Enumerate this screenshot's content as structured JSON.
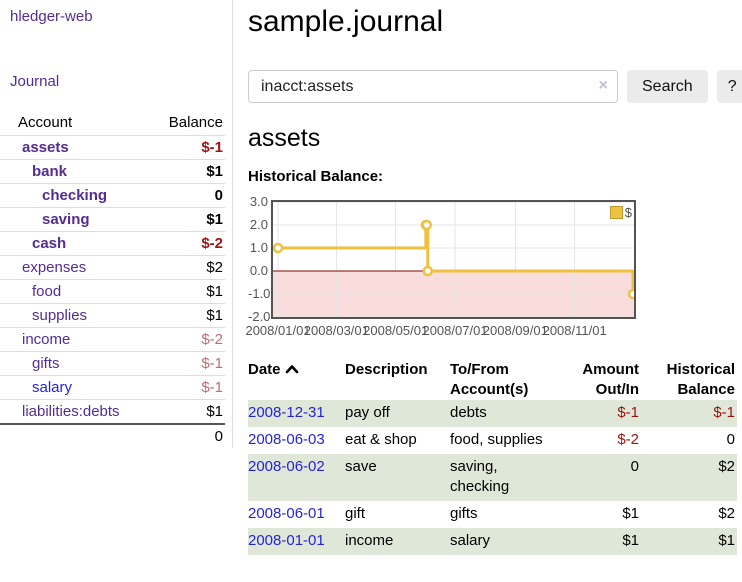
{
  "app": {
    "brand": "hledger-web",
    "nav_journal": "Journal"
  },
  "sidebar": {
    "headers": {
      "account": "Account",
      "balance": "Balance"
    },
    "accounts": [
      {
        "name": "assets",
        "indent": 0,
        "emph": true,
        "color": "purple",
        "balance": "$-1",
        "tone": "neg-strong"
      },
      {
        "name": "bank",
        "indent": 1,
        "emph": true,
        "color": "purple",
        "balance": "$1",
        "tone": "normal"
      },
      {
        "name": "checking",
        "indent": 2,
        "emph": true,
        "color": "purple",
        "balance": "0",
        "tone": "normal"
      },
      {
        "name": "saving",
        "indent": 2,
        "emph": true,
        "color": "purple",
        "balance": "$1",
        "tone": "normal"
      },
      {
        "name": "cash",
        "indent": 1,
        "emph": true,
        "color": "purple",
        "balance": "$-2",
        "tone": "neg-strong"
      },
      {
        "name": "expenses",
        "indent": 0,
        "emph": false,
        "color": "purple",
        "balance": "$2",
        "tone": "normal"
      },
      {
        "name": "food",
        "indent": 1,
        "emph": false,
        "color": "purple",
        "balance": "$1",
        "tone": "normal"
      },
      {
        "name": "supplies",
        "indent": 1,
        "emph": false,
        "color": "purple",
        "balance": "$1",
        "tone": "normal"
      },
      {
        "name": "income",
        "indent": 0,
        "emph": false,
        "color": "purple",
        "balance": "$-2",
        "tone": "neg-soft"
      },
      {
        "name": "gifts",
        "indent": 1,
        "emph": false,
        "color": "purple",
        "balance": "$-1",
        "tone": "neg-soft"
      },
      {
        "name": "salary",
        "indent": 1,
        "emph": false,
        "color": "blue",
        "balance": "$-1",
        "tone": "neg-soft"
      },
      {
        "name": "liabilities:debts",
        "indent": 0,
        "emph": false,
        "color": "purple",
        "balance": "$1",
        "tone": "normal"
      }
    ],
    "total": "0"
  },
  "header": {
    "title": "sample.journal"
  },
  "search": {
    "value": "inacct:assets",
    "clear_icon": "×",
    "submit_label": "Search",
    "help_label": "?"
  },
  "account_view": {
    "title": "assets",
    "section_label": "Historical Balance:"
  },
  "chart_data": {
    "type": "line",
    "step": true,
    "title": "Historical Balance:",
    "series": [
      {
        "name": "$",
        "color": "#edc240",
        "points": [
          [
            "2008-01-01",
            1
          ],
          [
            "2008-06-01",
            2
          ],
          [
            "2008-06-02",
            2
          ],
          [
            "2008-06-03",
            0
          ],
          [
            "2008-12-31",
            -1
          ]
        ]
      }
    ],
    "x_range": [
      "2008-01-01",
      "2008-12-31"
    ],
    "x_ticks": [
      {
        "date": "2008-01-01",
        "label": "2008/01/01"
      },
      {
        "date": "2008-03-01",
        "label": "2008/03/01"
      },
      {
        "date": "2008-05-01",
        "label": "2008/05/01"
      },
      {
        "date": "2008-07-01",
        "label": "2008/07/01"
      },
      {
        "date": "2008-09-01",
        "label": "2008/09/01"
      },
      {
        "date": "2008-11-01",
        "label": "2008/11/01"
      }
    ],
    "y_ticks": [
      {
        "value": 3,
        "label": "3.0"
      },
      {
        "value": 2,
        "label": "2.0"
      },
      {
        "value": 1,
        "label": "1.0"
      },
      {
        "value": 0,
        "label": "0.0"
      },
      {
        "value": -1,
        "label": "-1.0"
      },
      {
        "value": -2,
        "label": "-2.0"
      }
    ],
    "ylim": [
      -2,
      3
    ],
    "grid": true,
    "grid_color": "#e6e6e6",
    "negative_region_color": "#f9dcdc",
    "zero_line_color": "#8b0000",
    "legend": {
      "label": "$",
      "position": "top-right"
    }
  },
  "register": {
    "columns": [
      {
        "lines": [
          "Date"
        ],
        "align": "left",
        "sorted": "asc"
      },
      {
        "lines": [
          "Description"
        ],
        "align": "left"
      },
      {
        "lines": [
          "To/From",
          "Account(s)"
        ],
        "align": "left"
      },
      {
        "lines": [
          "Amount",
          "Out/In"
        ],
        "align": "right"
      },
      {
        "lines": [
          "Historical",
          "Balance"
        ],
        "align": "right"
      }
    ],
    "rows": [
      {
        "date": "2008-12-31",
        "description": "pay off",
        "accounts": "debts",
        "amount": "$-1",
        "amount_tone": "neg-strong",
        "balance": "$-1",
        "balance_tone": "neg-strong",
        "shaded": true
      },
      {
        "date": "2008-06-03",
        "description": "eat & shop",
        "accounts": "food, supplies",
        "amount": "$-2",
        "amount_tone": "neg-strong",
        "balance": "0",
        "balance_tone": "normal",
        "shaded": false
      },
      {
        "date": "2008-06-02",
        "description": "save",
        "accounts": "saving, checking",
        "amount": "0",
        "amount_tone": "normal",
        "balance": "$2",
        "balance_tone": "normal",
        "shaded": true
      },
      {
        "date": "2008-06-01",
        "description": "gift",
        "accounts": "gifts",
        "amount": "$1",
        "amount_tone": "normal",
        "balance": "$2",
        "balance_tone": "normal",
        "shaded": false
      },
      {
        "date": "2008-01-01",
        "description": "income",
        "accounts": "salary",
        "amount": "$1",
        "amount_tone": "normal",
        "balance": "$1",
        "balance_tone": "normal",
        "shaded": true
      }
    ]
  },
  "colors": {
    "link_purple": "#552d90",
    "link_blue": "#2424d6",
    "negative_strong": "#a11212",
    "negative_soft": "#bb6f6f",
    "row_shade": "#dfe8d8",
    "chart_line": "#edc240"
  }
}
